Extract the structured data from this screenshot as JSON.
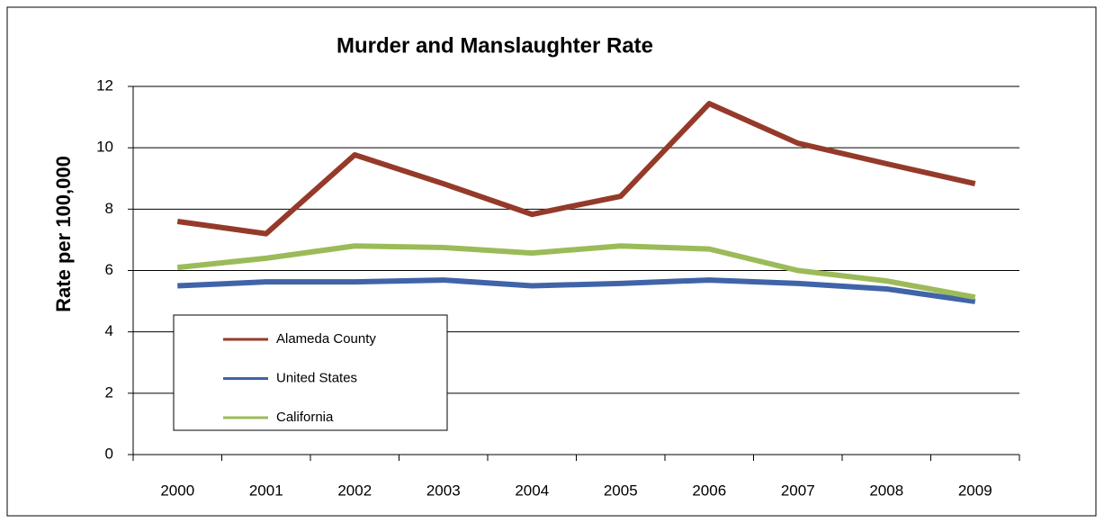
{
  "chart_data": {
    "type": "line",
    "title": "Murder and Manslaughter Rate",
    "y_label": "Rate per 100,000",
    "categories": [
      "2000",
      "2001",
      "2002",
      "2003",
      "2004",
      "2005",
      "2006",
      "2007",
      "2008",
      "2009"
    ],
    "series": [
      {
        "name": "Alameda County",
        "color": "#953a2a",
        "values": [
          7.6,
          7.2,
          9.77,
          8.83,
          7.83,
          8.42,
          11.44,
          10.15,
          9.48,
          8.83
        ]
      },
      {
        "name": "United States",
        "color": "#4064a8",
        "values": [
          5.5,
          5.63,
          5.63,
          5.69,
          5.5,
          5.58,
          5.69,
          5.58,
          5.4,
          4.99
        ]
      },
      {
        "name": "California",
        "color": "#9bbb59",
        "values": [
          6.1,
          6.4,
          6.8,
          6.75,
          6.57,
          6.8,
          6.7,
          6.0,
          5.66,
          5.13
        ]
      }
    ],
    "ylim": [
      0,
      12
    ],
    "yticks": [
      0,
      2,
      4,
      6,
      8,
      10,
      12
    ],
    "grid": true
  }
}
